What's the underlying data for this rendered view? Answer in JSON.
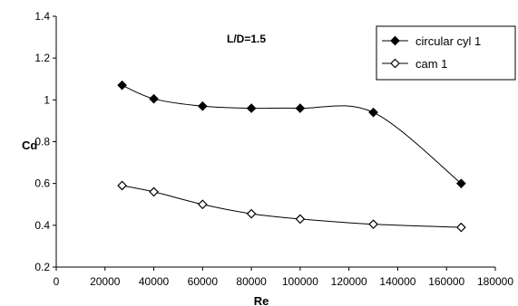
{
  "chart_data": {
    "type": "line",
    "annotation": "L/D=1.5",
    "xlabel": "Re",
    "ylabel": "Cd",
    "xlim": [
      0,
      180000
    ],
    "ylim": [
      0.2,
      1.4
    ],
    "xticks": [
      0,
      20000,
      40000,
      60000,
      80000,
      100000,
      120000,
      140000,
      160000,
      180000
    ],
    "yticks": [
      0.2,
      0.4,
      0.6,
      0.8,
      1,
      1.2,
      1.4
    ],
    "xtick_labels": [
      "0",
      "20000",
      "40000",
      "60000",
      "80000",
      "100000",
      "120000",
      "140000",
      "160000",
      "180000"
    ],
    "ytick_labels": [
      "0.2",
      "0.4",
      "0.6",
      "0.8",
      "1",
      "1.2",
      "1.4"
    ],
    "grid": false,
    "legend_position": "top-right",
    "series": [
      {
        "name": "circular cyl 1",
        "marker": "filled-diamond",
        "color": "#000000",
        "points": [
          [
            27000,
            1.07
          ],
          [
            40000,
            1.005
          ],
          [
            60000,
            0.97
          ],
          [
            80000,
            0.96
          ],
          [
            100000,
            0.96
          ],
          [
            130000,
            0.94
          ],
          [
            166000,
            0.6
          ]
        ]
      },
      {
        "name": "cam 1",
        "marker": "open-diamond",
        "color": "#000000",
        "points": [
          [
            27000,
            0.59
          ],
          [
            40000,
            0.56
          ],
          [
            60000,
            0.5
          ],
          [
            80000,
            0.455
          ],
          [
            100000,
            0.43
          ],
          [
            130000,
            0.405
          ],
          [
            166000,
            0.39
          ]
        ]
      }
    ]
  }
}
